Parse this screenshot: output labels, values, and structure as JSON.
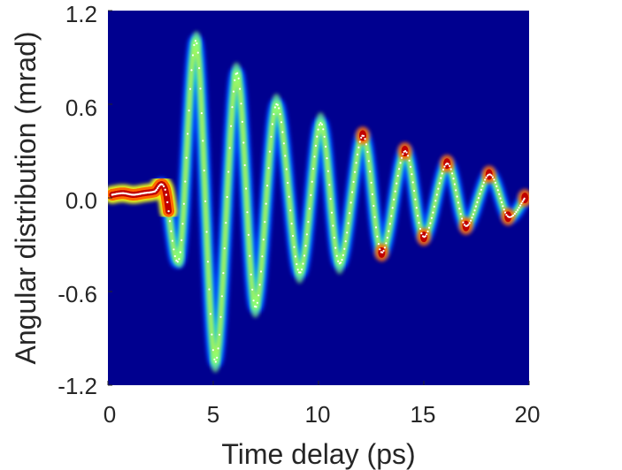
{
  "chart_data": {
    "type": "heatmap",
    "title": "",
    "xlabel": "Time delay (ps)",
    "ylabel": "Angular distribution (mrad)",
    "xlim": [
      0,
      20
    ],
    "ylim": [
      -1.2,
      1.2
    ],
    "x_ticks": [
      0,
      5,
      10,
      15,
      20
    ],
    "x_tick_labels": [
      "0",
      "5",
      "10",
      "15",
      "20"
    ],
    "y_ticks": [
      1.2,
      0.6,
      0.0,
      -0.6,
      -1.2
    ],
    "y_tick_labels": [
      "1.2",
      "0.6",
      "0.0",
      "-0.6",
      "-1.2"
    ],
    "colormap": [
      "#00008f",
      "#0040ff",
      "#00c0ff",
      "#80ff80",
      "#ffff00",
      "#ff6000",
      "#c00000",
      "#800000"
    ],
    "background_color": "#00008f",
    "series": [
      {
        "points": [
          [
            0.2,
            0.02
          ],
          [
            0.7,
            0.03
          ],
          [
            1.2,
            0.02
          ],
          [
            1.7,
            0.03
          ],
          [
            2.2,
            0.04
          ],
          [
            2.7,
            0.06
          ],
          [
            3.4,
            -0.38
          ],
          [
            4.2,
            1.0
          ],
          [
            5.1,
            -1.05
          ],
          [
            6.1,
            0.8
          ],
          [
            7.0,
            -0.7
          ],
          [
            8.0,
            0.6
          ],
          [
            9.1,
            -0.48
          ],
          [
            10.1,
            0.48
          ],
          [
            11.0,
            -0.42
          ],
          [
            12.1,
            0.4
          ],
          [
            13.0,
            -0.35
          ],
          [
            14.1,
            0.3
          ],
          [
            15.0,
            -0.25
          ],
          [
            16.1,
            0.22
          ],
          [
            17.0,
            -0.18
          ],
          [
            18.1,
            0.15
          ],
          [
            19.0,
            -0.12
          ],
          [
            19.8,
            0.0
          ]
        ]
      }
    ],
    "grid": false,
    "legend": "none"
  }
}
